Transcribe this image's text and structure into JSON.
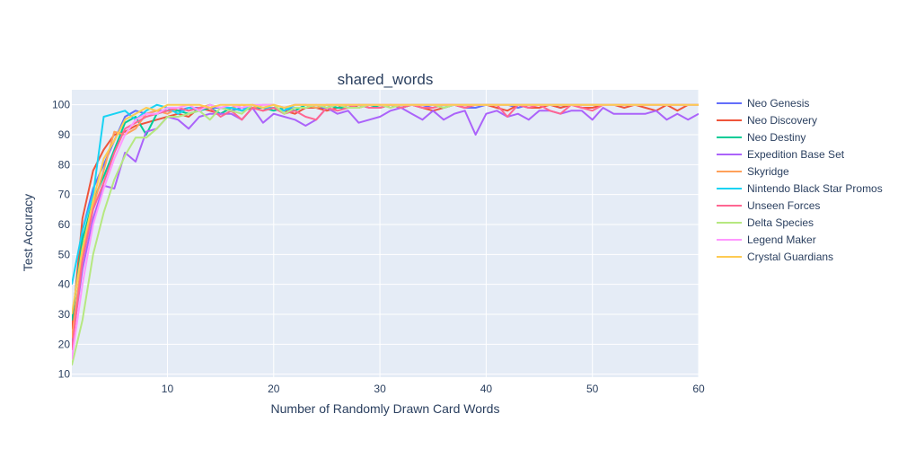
{
  "chart_data": {
    "type": "line",
    "title": "shared_words",
    "xlabel": "Number of Randomly Drawn Card Words",
    "ylabel": "Test Accuracy",
    "xlim": [
      1,
      60
    ],
    "ylim": [
      9,
      105
    ],
    "xticks": [
      10,
      20,
      30,
      40,
      50,
      60
    ],
    "yticks": [
      10,
      20,
      30,
      40,
      50,
      60,
      70,
      80,
      90,
      100
    ],
    "grid": true,
    "legend_position": "right",
    "series": [
      {
        "name": "Neo Genesis",
        "color": "#636efa",
        "x": [
          1,
          2,
          3,
          4,
          5,
          6,
          7,
          8,
          9,
          10,
          11,
          12,
          13,
          14,
          15,
          16,
          17,
          18,
          19,
          20,
          21,
          22,
          23,
          24,
          25,
          26,
          27,
          28,
          29,
          30,
          31,
          32,
          33,
          34,
          35,
          36,
          37,
          38,
          39,
          40,
          41,
          42,
          43,
          44,
          45,
          46,
          47,
          48,
          49,
          50,
          51,
          52,
          53,
          54,
          55,
          56,
          57,
          58,
          59,
          60
        ],
        "y": [
          27,
          58,
          72,
          80,
          88,
          96,
          98,
          97,
          98,
          98,
          98,
          99,
          99,
          99,
          99,
          98,
          99,
          99,
          99,
          99,
          98,
          99,
          99,
          99,
          99,
          100,
          99,
          100,
          99,
          99,
          100,
          99,
          100,
          99,
          100,
          100,
          100,
          99,
          99,
          100,
          100,
          100,
          99,
          100,
          100,
          100,
          99,
          100,
          100,
          100,
          100,
          100,
          100,
          100,
          100,
          100,
          100,
          100,
          100,
          100
        ]
      },
      {
        "name": "Neo Discovery",
        "color": "#ef553b",
        "x": [
          1,
          2,
          3,
          4,
          5,
          6,
          7,
          8,
          9,
          10,
          11,
          12,
          13,
          14,
          15,
          16,
          17,
          18,
          19,
          20,
          21,
          22,
          23,
          24,
          25,
          26,
          27,
          28,
          29,
          30,
          31,
          32,
          33,
          34,
          35,
          36,
          37,
          38,
          39,
          40,
          41,
          42,
          43,
          44,
          45,
          46,
          47,
          48,
          49,
          50,
          51,
          52,
          53,
          54,
          55,
          56,
          57,
          58,
          59,
          60
        ],
        "y": [
          25,
          62,
          78,
          85,
          90,
          91,
          93,
          94,
          95,
          96,
          97,
          96,
          99,
          98,
          97,
          99,
          98,
          99,
          98,
          99,
          98,
          97,
          99,
          99,
          98,
          99,
          100,
          99,
          100,
          99,
          100,
          99,
          100,
          99,
          98,
          99,
          100,
          99,
          100,
          100,
          99,
          98,
          100,
          99,
          99,
          100,
          99,
          100,
          99,
          99,
          100,
          100,
          99,
          100,
          99,
          98,
          100,
          98,
          100,
          100
        ]
      },
      {
        "name": "Neo Destiny",
        "color": "#00cc96",
        "x": [
          1,
          2,
          3,
          4,
          5,
          6,
          7,
          8,
          9,
          10,
          11,
          12,
          13,
          14,
          15,
          16,
          17,
          18,
          19,
          20,
          21,
          22,
          23,
          24,
          25,
          26,
          27,
          28,
          29,
          30,
          31,
          32,
          33,
          34,
          35,
          36,
          37,
          38,
          39,
          40,
          41,
          42,
          43,
          44,
          45,
          46,
          47,
          48,
          49,
          50,
          51,
          52,
          53,
          54,
          55,
          56,
          57,
          58,
          59,
          60
        ],
        "y": [
          28,
          55,
          68,
          76,
          85,
          94,
          96,
          90,
          97,
          98,
          98,
          97,
          98,
          99,
          97,
          99,
          98,
          99,
          99,
          98,
          99,
          98,
          100,
          99,
          100,
          99,
          99,
          100,
          100,
          99,
          100,
          99,
          100,
          100,
          100,
          99,
          100,
          100,
          100,
          100,
          100,
          100,
          100,
          100,
          100,
          100,
          100,
          100,
          100,
          100,
          100,
          100,
          100,
          100,
          100,
          100,
          100,
          100,
          100,
          100
        ]
      },
      {
        "name": "Expedition Base Set",
        "color": "#ab63fa",
        "x": [
          1,
          2,
          3,
          4,
          5,
          6,
          7,
          8,
          9,
          10,
          11,
          12,
          13,
          14,
          15,
          16,
          17,
          18,
          19,
          20,
          21,
          22,
          23,
          24,
          25,
          26,
          27,
          28,
          29,
          30,
          31,
          32,
          33,
          34,
          35,
          36,
          37,
          38,
          39,
          40,
          41,
          42,
          43,
          44,
          45,
          46,
          47,
          48,
          49,
          50,
          51,
          52,
          53,
          54,
          55,
          56,
          57,
          58,
          59,
          60
        ],
        "y": [
          20,
          45,
          62,
          73,
          72,
          84,
          81,
          91,
          92,
          96,
          95,
          92,
          96,
          97,
          97,
          97,
          95,
          99,
          94,
          97,
          96,
          95,
          93,
          95,
          99,
          97,
          98,
          94,
          95,
          96,
          98,
          99,
          97,
          95,
          98,
          95,
          97,
          98,
          90,
          97,
          98,
          96,
          97,
          95,
          98,
          98,
          97,
          98,
          98,
          95,
          99,
          97,
          97,
          97,
          97,
          98,
          95,
          97,
          95,
          97
        ]
      },
      {
        "name": "Skyridge",
        "color": "#ffa15a",
        "x": [
          1,
          2,
          3,
          4,
          5,
          6,
          7,
          8,
          9,
          10,
          11,
          12,
          13,
          14,
          15,
          16,
          17,
          18,
          19,
          20,
          21,
          22,
          23,
          24,
          25,
          26,
          27,
          28,
          29,
          30,
          31,
          32,
          33,
          34,
          35,
          36,
          37,
          38,
          39,
          40,
          41,
          42,
          43,
          44,
          45,
          46,
          47,
          48,
          49,
          50,
          51,
          52,
          53,
          54,
          55,
          56,
          57,
          58,
          59,
          60
        ],
        "y": [
          22,
          50,
          66,
          78,
          91,
          90,
          92,
          97,
          98,
          97,
          99,
          98,
          99,
          100,
          99,
          99,
          100,
          99,
          100,
          100,
          99,
          100,
          100,
          99,
          100,
          100,
          100,
          100,
          100,
          100,
          100,
          100,
          100,
          100,
          100,
          100,
          100,
          100,
          100,
          100,
          100,
          100,
          100,
          100,
          100,
          100,
          100,
          100,
          100,
          100,
          100,
          100,
          100,
          100,
          100,
          100,
          100,
          100,
          100,
          100
        ]
      },
      {
        "name": "Nintendo Black Star Promos",
        "color": "#19d3f3",
        "x": [
          1,
          2,
          3,
          4,
          5,
          6,
          7,
          8,
          9,
          10,
          11,
          12,
          13,
          14,
          15,
          16,
          17,
          18,
          19,
          20,
          21,
          22
        ],
        "y": [
          40,
          58,
          70,
          96,
          97,
          98,
          95,
          98,
          100,
          99,
          97,
          99,
          98,
          100,
          99,
          99,
          98,
          100,
          99,
          99,
          98,
          100
        ]
      },
      {
        "name": "Unseen Forces",
        "color": "#ff6692",
        "x": [
          1,
          2,
          3,
          4,
          5,
          6,
          7,
          8,
          9,
          10,
          11,
          12,
          13,
          14,
          15,
          16,
          17,
          18,
          19,
          20,
          21,
          22,
          23,
          24,
          25,
          26,
          27,
          28,
          29,
          30,
          31,
          32,
          33,
          34,
          35,
          36,
          37,
          38,
          39,
          40,
          41,
          42,
          43,
          44,
          45,
          46,
          47,
          48,
          49,
          50,
          51,
          52,
          53,
          54,
          55,
          56,
          57,
          58,
          59,
          60
        ],
        "y": [
          18,
          48,
          65,
          74,
          84,
          92,
          94,
          96,
          97,
          98,
          99,
          98,
          99,
          99,
          96,
          98,
          95,
          99,
          98,
          99,
          97,
          98,
          96,
          95,
          99,
          98,
          99,
          100,
          99,
          99,
          100,
          99,
          100,
          99,
          99,
          100,
          100,
          99,
          100,
          100,
          100,
          96,
          100,
          99,
          100,
          98,
          97,
          100,
          99,
          98,
          100,
          100,
          100,
          100,
          100,
          100,
          100,
          100,
          100,
          100
        ]
      },
      {
        "name": "Delta Species",
        "color": "#b6e880",
        "x": [
          1,
          2,
          3,
          4,
          5,
          6,
          7,
          8,
          9,
          10,
          11,
          12,
          13,
          14,
          15,
          16,
          17,
          18,
          19,
          20,
          21,
          22,
          23,
          24,
          25,
          26,
          27,
          28,
          29,
          30,
          31,
          32,
          33,
          34,
          35,
          36,
          37,
          38,
          39,
          40,
          41,
          42,
          43,
          44,
          45,
          46,
          47,
          48,
          49,
          50,
          51,
          52,
          53,
          54,
          55,
          56,
          57,
          58,
          59,
          60
        ],
        "y": [
          13,
          28,
          50,
          64,
          75,
          83,
          89,
          89,
          92,
          96,
          96,
          97,
          98,
          95,
          99,
          98,
          97,
          100,
          99,
          100,
          97,
          99,
          99,
          100,
          99,
          100,
          99,
          99,
          100,
          100,
          99,
          100,
          100,
          100,
          100,
          99,
          100,
          100,
          100,
          100,
          100,
          100,
          100,
          100,
          100,
          100,
          100,
          100,
          100,
          100,
          100,
          100,
          100,
          100,
          100,
          100,
          100,
          100,
          100,
          100
        ]
      },
      {
        "name": "Legend Maker",
        "color": "#ff97ff",
        "x": [
          1,
          2,
          3,
          4,
          5,
          6,
          7,
          8,
          9,
          10,
          11,
          12,
          13,
          14,
          15,
          16,
          17,
          18,
          19,
          20,
          21,
          22,
          23,
          24,
          25,
          26,
          27,
          28,
          29,
          30,
          31,
          32,
          33,
          34,
          35,
          36,
          37,
          38,
          39,
          40,
          41,
          42,
          43,
          44,
          45,
          46,
          47,
          48,
          49,
          50,
          51,
          52,
          53,
          54,
          55,
          56,
          57,
          58,
          59,
          60
        ],
        "y": [
          15,
          40,
          60,
          72,
          82,
          90,
          95,
          97,
          97,
          99,
          99,
          100,
          98,
          100,
          99,
          100,
          99,
          100,
          100,
          100,
          99,
          100,
          100,
          100,
          100,
          100,
          100,
          100,
          100,
          100,
          100,
          100,
          100,
          100,
          100,
          100,
          100,
          100,
          100,
          100,
          100,
          100,
          100,
          100,
          100,
          100,
          100,
          100,
          100,
          100,
          100,
          100,
          100,
          100,
          100,
          100,
          100,
          100,
          100,
          100
        ]
      },
      {
        "name": "Crystal Guardians",
        "color": "#fecb52",
        "x": [
          1,
          2,
          3,
          4,
          5,
          6,
          7,
          8,
          9,
          10,
          11,
          12,
          13,
          14,
          15,
          16,
          17,
          18,
          19,
          20,
          21,
          22,
          23,
          24,
          25,
          26,
          27,
          28,
          29,
          30,
          31,
          32,
          33,
          34,
          35,
          36,
          37,
          38,
          39,
          40,
          41,
          42,
          43,
          44,
          45,
          46,
          47,
          48,
          49,
          50,
          51,
          52,
          53,
          54,
          55,
          56,
          57,
          58,
          59,
          60
        ],
        "y": [
          30,
          52,
          68,
          82,
          88,
          95,
          97,
          99,
          98,
          100,
          100,
          100,
          100,
          99,
          100,
          100,
          100,
          100,
          99,
          100,
          99,
          100,
          100,
          100,
          100,
          100,
          100,
          100,
          100,
          100,
          100,
          100,
          100,
          100,
          100,
          100,
          100,
          100,
          100,
          100,
          100,
          100,
          100,
          100,
          100,
          100,
          100,
          100,
          100,
          100,
          100,
          100,
          100,
          100,
          100,
          100,
          100,
          100,
          100,
          100
        ]
      }
    ]
  }
}
